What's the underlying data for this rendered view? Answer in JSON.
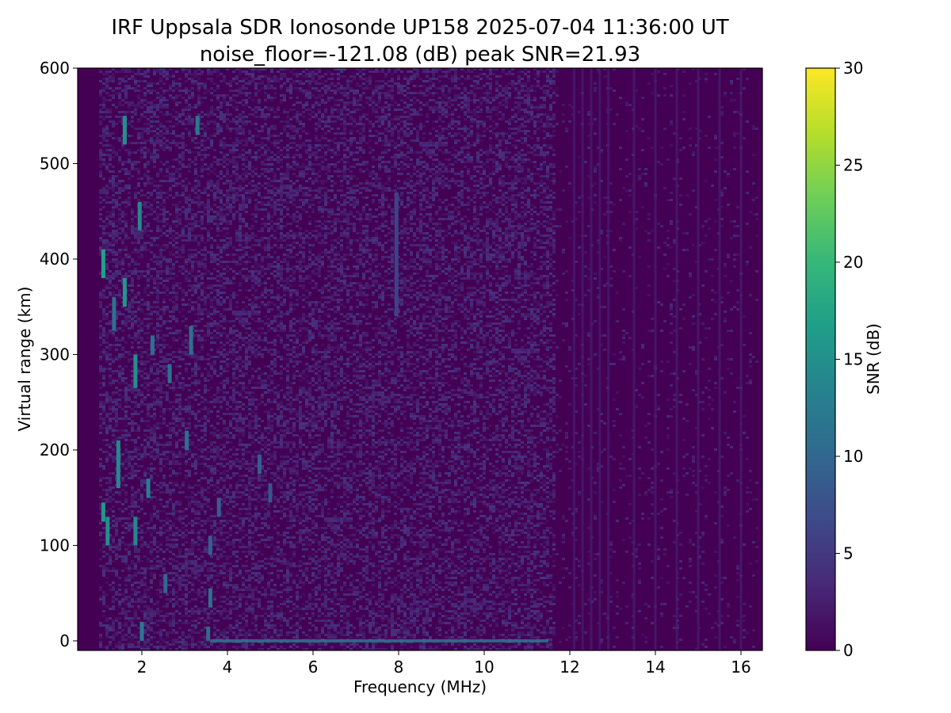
{
  "chart_data": {
    "type": "heatmap",
    "title": "IRF Uppsala SDR Ionosonde UP158 2025-07-04 11:36:00  UT",
    "subtitle": "noise_floor=-121.08 (dB) peak SNR=21.93",
    "xlabel": "Frequency (MHz)",
    "ylabel": "Virtual range (km)",
    "xlim": [
      0.5,
      16.5
    ],
    "ylim": [
      -10,
      600
    ],
    "xticks": [
      "2",
      "4",
      "6",
      "8",
      "10",
      "12",
      "14",
      "16"
    ],
    "yticks": [
      "0",
      "100",
      "200",
      "300",
      "400",
      "500",
      "600"
    ],
    "colorbar": {
      "label": "SNR (dB)",
      "range": [
        0,
        30
      ],
      "ticks": [
        "0",
        "5",
        "10",
        "15",
        "20",
        "25",
        "30"
      ],
      "colormap": [
        "#440154",
        "#482878",
        "#3e4989",
        "#31688e",
        "#26828e",
        "#1f9e89",
        "#35b779",
        "#6ece58",
        "#b5de2b",
        "#fde725"
      ]
    },
    "features": [
      {
        "type": "echo",
        "freq": 1.1,
        "range_start": 380,
        "range_end": 410,
        "snr": 17
      },
      {
        "type": "echo",
        "freq": 1.1,
        "range_start": 125,
        "range_end": 145,
        "snr": 16
      },
      {
        "type": "echo",
        "freq": 1.2,
        "range_start": 100,
        "range_end": 130,
        "snr": 15
      },
      {
        "type": "echo",
        "freq": 1.35,
        "range_start": 325,
        "range_end": 360,
        "snr": 11
      },
      {
        "type": "echo",
        "freq": 1.45,
        "range_start": 160,
        "range_end": 210,
        "snr": 14
      },
      {
        "type": "echo",
        "freq": 1.6,
        "range_start": 350,
        "range_end": 380,
        "snr": 16
      },
      {
        "type": "echo",
        "freq": 1.6,
        "range_start": 520,
        "range_end": 550,
        "snr": 15
      },
      {
        "type": "echo",
        "freq": 1.85,
        "range_start": 265,
        "range_end": 300,
        "snr": 15
      },
      {
        "type": "echo",
        "freq": 1.85,
        "range_start": 100,
        "range_end": 130,
        "snr": 14
      },
      {
        "type": "echo",
        "freq": 1.95,
        "range_start": 430,
        "range_end": 460,
        "snr": 14
      },
      {
        "type": "echo",
        "freq": 2.0,
        "range_start": 0,
        "range_end": 20,
        "snr": 12
      },
      {
        "type": "echo",
        "freq": 2.15,
        "range_start": 150,
        "range_end": 170,
        "snr": 13
      },
      {
        "type": "echo",
        "freq": 2.25,
        "range_start": 300,
        "range_end": 320,
        "snr": 11
      },
      {
        "type": "echo",
        "freq": 2.55,
        "range_start": 50,
        "range_end": 70,
        "snr": 10
      },
      {
        "type": "echo",
        "freq": 2.65,
        "range_start": 270,
        "range_end": 290,
        "snr": 11
      },
      {
        "type": "echo",
        "freq": 3.05,
        "range_start": 200,
        "range_end": 220,
        "snr": 11
      },
      {
        "type": "echo",
        "freq": 3.15,
        "range_start": 300,
        "range_end": 330,
        "snr": 11
      },
      {
        "type": "echo",
        "freq": 3.3,
        "range_start": 530,
        "range_end": 550,
        "snr": 12
      },
      {
        "type": "echo",
        "freq": 3.55,
        "range_start": 0,
        "range_end": 15,
        "snr": 10
      },
      {
        "type": "echo",
        "freq": 3.6,
        "range_start": 35,
        "range_end": 55,
        "snr": 11
      },
      {
        "type": "echo",
        "freq": 3.6,
        "range_start": 90,
        "range_end": 110,
        "snr": 9
      },
      {
        "type": "echo",
        "freq": 3.8,
        "range_start": 130,
        "range_end": 150,
        "snr": 9
      },
      {
        "type": "echo",
        "freq": 4.75,
        "range_start": 175,
        "range_end": 195,
        "snr": 9
      },
      {
        "type": "echo",
        "freq": 5.0,
        "range_start": 145,
        "range_end": 165,
        "snr": 8
      },
      {
        "type": "echo",
        "freq": 7.95,
        "range_start": 340,
        "range_end": 470,
        "snr": 6
      },
      {
        "type": "ground_line",
        "range": 0,
        "freq_start": 3.6,
        "freq_end": 11.5,
        "snr": 12
      }
    ]
  }
}
